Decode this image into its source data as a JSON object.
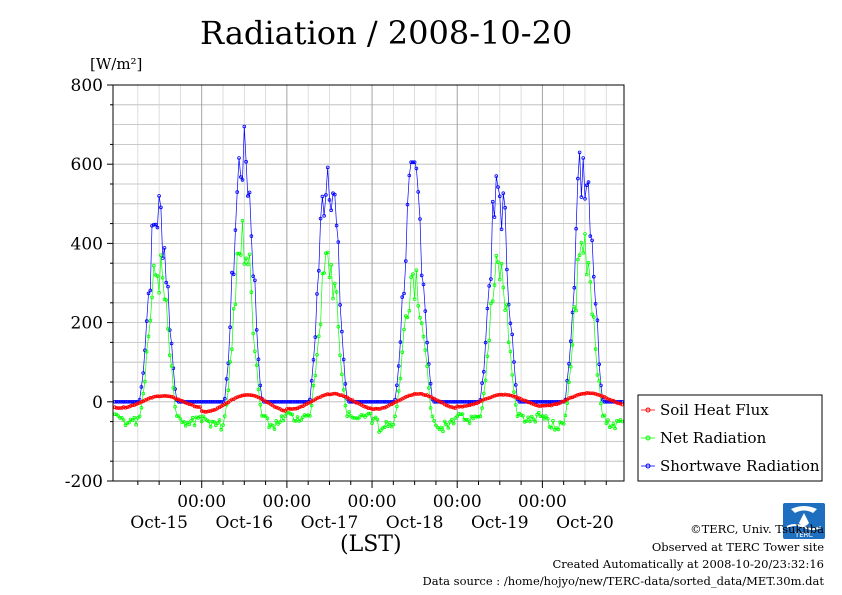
{
  "header": {
    "title": "Radiation / 2008-10-20",
    "unit": "[W/m²]",
    "xlabel": "(LST)"
  },
  "footer": {
    "copyright": "©TERC, Univ. Tsukuba",
    "site": "Observed at TERC Tower site",
    "created": "Created Automatically at 2008-10-20/23:32:16",
    "source": "Data source : /home/hojyo/new/TERC-data/sorted_data/MET.30m.dat"
  },
  "logo": {
    "text": "TERC",
    "icon": "terc-logo-icon",
    "color": "#1e6fc0"
  },
  "chart_data": {
    "type": "line",
    "title": "Radiation / 2008-10-20",
    "ylabel": "[W/m²]",
    "xlabel": "(LST)",
    "ylim": [
      -200,
      800
    ],
    "yticks": [
      "800",
      "600",
      "400",
      "200",
      "0",
      "-200"
    ],
    "x_day_labels": [
      "Oct-15",
      "Oct-16",
      "Oct-17",
      "Oct-18",
      "Oct-19",
      "Oct-20"
    ],
    "x_time_label": "00:00",
    "grid": true,
    "legend_position": "right",
    "series": [
      {
        "name": "Soil Heat Flux",
        "color": "#ff0000",
        "peaks": [
          15,
          18,
          20,
          20,
          18,
          22
        ],
        "troughs": [
          -15,
          -25,
          -18,
          -18,
          -12,
          -10
        ]
      },
      {
        "name": "Net Radiation",
        "color": "#00ff00",
        "peaks": [
          400,
          480,
          420,
          400,
          400,
          480
        ],
        "troughs": [
          -55,
          -65,
          -45,
          -70,
          -50,
          -65
        ]
      },
      {
        "name": "Shortwave Radiation",
        "color": "#0000ff",
        "peaks": [
          520,
          695,
          655,
          605,
          570,
          670
        ]
      }
    ]
  }
}
